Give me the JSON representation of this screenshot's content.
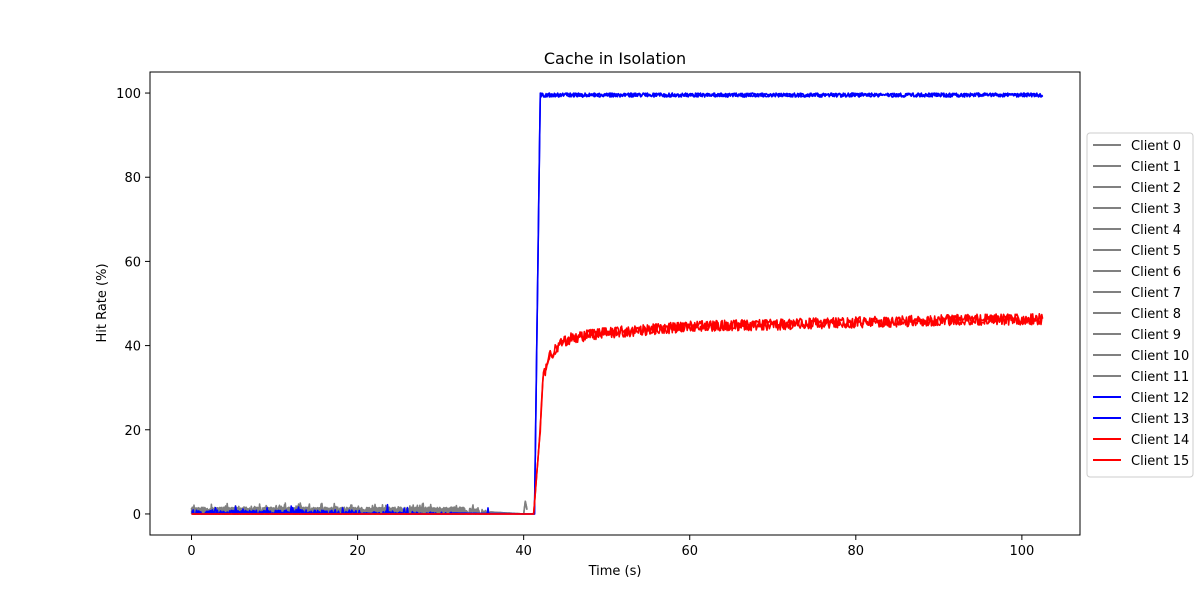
{
  "chart_data": {
    "type": "line",
    "title": "Cache in  Isolation",
    "xlabel": "Time (s)",
    "ylabel": "Hit Rate (%)",
    "xlim": [
      -5,
      107
    ],
    "ylim": [
      -5,
      105
    ],
    "xticks": [
      0,
      20,
      40,
      60,
      80,
      100
    ],
    "yticks": [
      0,
      20,
      40,
      60,
      80,
      100
    ],
    "grid": false,
    "legend_position": "center right, outside plot",
    "series": [
      {
        "name": "Client 0",
        "color": "#808080",
        "x": [
          0,
          33
        ],
        "y": [
          0.8,
          0.8
        ],
        "noise": 1.2
      },
      {
        "name": "Client 1",
        "color": "#808080",
        "x": [
          0,
          33
        ],
        "y": [
          0.8,
          0.8
        ],
        "noise": 1.2
      },
      {
        "name": "Client 2",
        "color": "#808080",
        "x": [
          0,
          33
        ],
        "y": [
          0.8,
          0.8
        ],
        "noise": 1.2
      },
      {
        "name": "Client 3",
        "color": "#808080",
        "x": [
          0,
          33
        ],
        "y": [
          0.8,
          0.8
        ],
        "noise": 1.2
      },
      {
        "name": "Client 4",
        "color": "#808080",
        "x": [
          0,
          33
        ],
        "y": [
          0.8,
          0.8
        ],
        "noise": 1.2
      },
      {
        "name": "Client 5",
        "color": "#808080",
        "x": [
          0,
          33
        ],
        "y": [
          0.8,
          0.8
        ],
        "noise": 1.2
      },
      {
        "name": "Client 6",
        "color": "#808080",
        "x": [
          0,
          33
        ],
        "y": [
          0.8,
          0.8
        ],
        "noise": 1.2
      },
      {
        "name": "Client 7",
        "color": "#808080",
        "x": [
          0,
          33
        ],
        "y": [
          0.8,
          0.8
        ],
        "noise": 1.2
      },
      {
        "name": "Client 8",
        "color": "#808080",
        "x": [
          0,
          33
        ],
        "y": [
          0.8,
          0.8
        ],
        "noise": 1.2
      },
      {
        "name": "Client 9",
        "color": "#808080",
        "x": [
          0,
          33
        ],
        "y": [
          0.8,
          0.8
        ],
        "noise": 1.2
      },
      {
        "name": "Client 10",
        "color": "#808080",
        "x": [
          0,
          33,
          40,
          40.2,
          40.5
        ],
        "y": [
          0.8,
          0.8,
          0,
          3,
          0
        ],
        "noise": 1.2
      },
      {
        "name": "Client 11",
        "color": "#808080",
        "x": [
          0,
          33,
          40,
          40.2,
          40.5
        ],
        "y": [
          0.8,
          0.8,
          0,
          3,
          0
        ],
        "noise": 1.2
      },
      {
        "name": "Client 12",
        "color": "#0000ff",
        "x": [
          0,
          17,
          23.3,
          23.5,
          23.7,
          35.4,
          35.6,
          35.8,
          41.3,
          42,
          102.5
        ],
        "y": [
          0.5,
          0.5,
          0,
          3,
          0,
          0,
          3,
          0,
          0,
          99.5,
          99.5
        ],
        "noise": 0.6
      },
      {
        "name": "Client 13",
        "color": "#0000ff",
        "x": [
          0,
          17,
          41.3,
          42,
          102.5
        ],
        "y": [
          0.5,
          0.5,
          0,
          99.5,
          99.5
        ],
        "noise": 0.6
      },
      {
        "name": "Client 14",
        "color": "#ff0000",
        "x": [
          0,
          41.2,
          42,
          42.3,
          43,
          44.5,
          46,
          50,
          55,
          60,
          70,
          80,
          90,
          102.5
        ],
        "y": [
          0,
          0,
          20,
          32,
          37,
          40.5,
          42,
          43,
          43.8,
          44.5,
          45,
          45.5,
          46,
          46.3
        ],
        "noise": 1.2
      },
      {
        "name": "Client 15",
        "color": "#ff0000",
        "x": [
          0,
          41.2,
          42,
          42.3,
          43,
          44.5,
          46,
          50,
          55,
          60,
          70,
          80,
          90,
          102.5
        ],
        "y": [
          0,
          0,
          20,
          32,
          37,
          40.5,
          42,
          43,
          43.8,
          44.5,
          45,
          45.5,
          46,
          46.3
        ],
        "noise": 1.2
      }
    ]
  }
}
